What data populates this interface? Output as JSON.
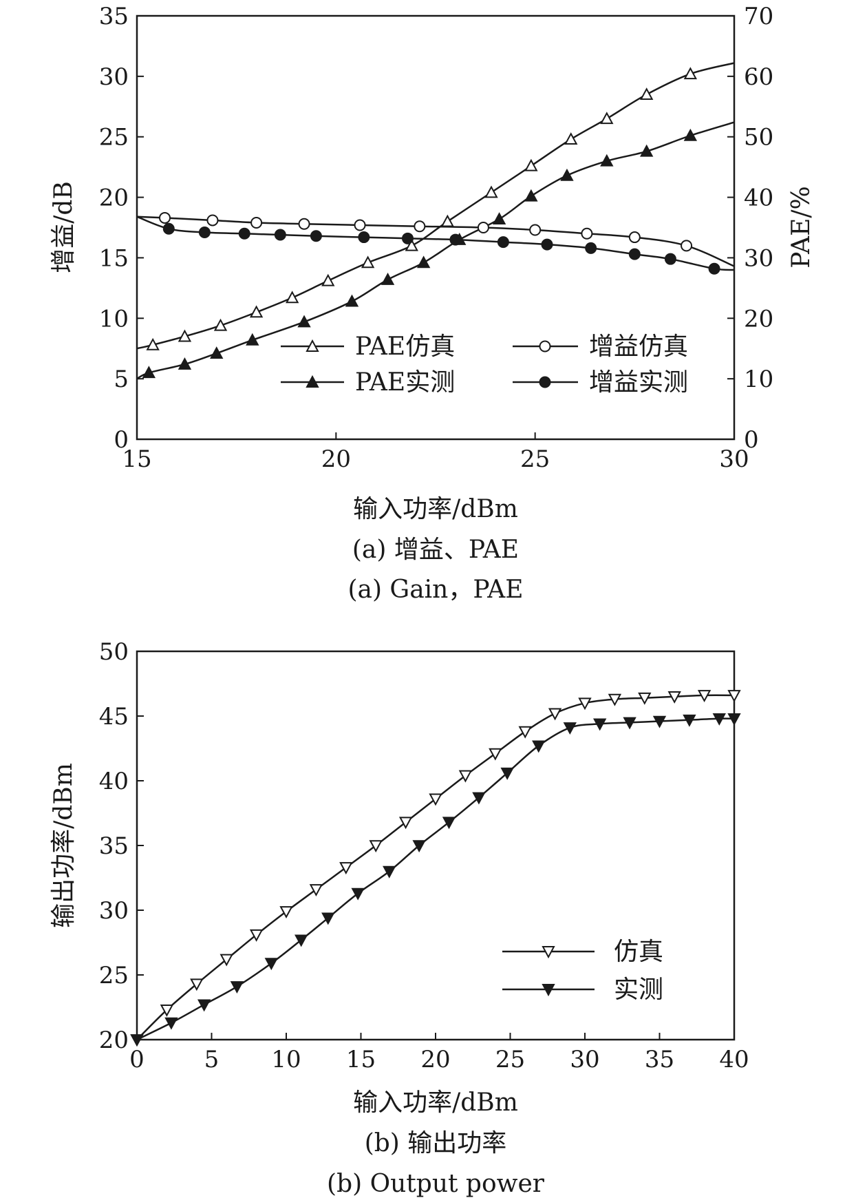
{
  "chart_data": [
    {
      "type": "line",
      "caption_cn": "(a) 增益、PAE",
      "caption_en": "(a) Gain，PAE",
      "xlabel": "输入功率/dBm",
      "ylabel_left": "增益/dB",
      "ylabel_right": "PAE/%",
      "xlim": [
        15,
        30
      ],
      "ylim_left": [
        0,
        35
      ],
      "ylim_right": [
        0,
        70
      ],
      "xticks": [
        "15",
        "20",
        "25",
        "30"
      ],
      "yticks_left": [
        "0",
        "5",
        "10",
        "15",
        "20",
        "25",
        "30",
        "35"
      ],
      "yticks_right": [
        "0",
        "10",
        "20",
        "30",
        "40",
        "50",
        "60",
        "70"
      ],
      "legend_position": "lower-center",
      "series": [
        {
          "name": "PAE仿真",
          "axis": "right",
          "marker": "triangle-up-open",
          "x": [
            15.0,
            15.4,
            16.2,
            17.1,
            18.0,
            18.9,
            19.8,
            20.8,
            21.9,
            22.8,
            23.9,
            24.9,
            25.9,
            26.8,
            27.8,
            28.9,
            30.0
          ],
          "y": [
            15.0,
            15.6,
            17.0,
            18.8,
            21.0,
            23.4,
            26.2,
            29.2,
            32.0,
            36.0,
            40.8,
            45.2,
            49.6,
            53.0,
            57.0,
            60.4,
            62.2
          ]
        },
        {
          "name": "PAE实测",
          "axis": "right",
          "marker": "triangle-up-filled",
          "x": [
            15.0,
            15.3,
            16.2,
            17.0,
            17.9,
            19.2,
            20.4,
            21.3,
            22.2,
            23.1,
            24.1,
            24.9,
            25.8,
            26.8,
            27.8,
            28.9,
            30.0
          ],
          "y": [
            10.0,
            11.0,
            12.4,
            14.2,
            16.4,
            19.4,
            22.8,
            26.4,
            29.2,
            33.0,
            36.4,
            40.2,
            43.6,
            46.0,
            47.6,
            50.2,
            52.4
          ]
        },
        {
          "name": "增益仿真",
          "axis": "left",
          "marker": "circle-open",
          "x": [
            15.0,
            15.7,
            16.9,
            18.0,
            19.2,
            20.6,
            22.1,
            23.7,
            25.0,
            26.3,
            27.5,
            28.8,
            30.0
          ],
          "y": [
            18.4,
            18.3,
            18.1,
            17.9,
            17.8,
            17.7,
            17.6,
            17.5,
            17.3,
            17.0,
            16.7,
            16.0,
            14.3
          ]
        },
        {
          "name": "增益实测",
          "axis": "left",
          "marker": "circle-filled",
          "x": [
            15.0,
            15.8,
            16.7,
            17.7,
            18.6,
            19.5,
            20.7,
            21.8,
            23.0,
            24.2,
            25.3,
            26.4,
            27.5,
            28.4,
            29.5,
            30.0
          ],
          "y": [
            18.4,
            17.4,
            17.1,
            17.0,
            16.9,
            16.8,
            16.7,
            16.6,
            16.5,
            16.3,
            16.1,
            15.8,
            15.3,
            14.9,
            14.1,
            14.0
          ]
        }
      ]
    },
    {
      "type": "line",
      "caption_cn": "(b) 输出功率",
      "caption_en": "(b) Output power",
      "xlabel": "输入功率/dBm",
      "ylabel": "输出功率/dBm",
      "xlim": [
        0,
        40
      ],
      "ylim": [
        20,
        50
      ],
      "xticks": [
        "0",
        "5",
        "10",
        "15",
        "20",
        "25",
        "30",
        "35",
        "40"
      ],
      "yticks": [
        "20",
        "25",
        "30",
        "35",
        "40",
        "45",
        "50"
      ],
      "legend_position": "lower-right",
      "series": [
        {
          "name": "仿真",
          "marker": "triangle-down-open",
          "x": [
            0,
            2,
            4,
            6,
            8,
            10,
            12,
            14,
            16,
            18,
            20,
            22,
            24,
            26,
            28,
            30,
            32,
            34,
            36,
            38,
            40
          ],
          "y": [
            20.0,
            22.3,
            24.3,
            26.2,
            28.1,
            29.9,
            31.6,
            33.3,
            35.0,
            36.8,
            38.6,
            40.4,
            42.1,
            43.8,
            45.2,
            46.0,
            46.3,
            46.4,
            46.5,
            46.6,
            46.6
          ]
        },
        {
          "name": "实测",
          "marker": "triangle-down-filled",
          "x": [
            0,
            2.3,
            4.5,
            6.7,
            9.0,
            11.0,
            12.8,
            14.8,
            16.9,
            18.9,
            20.9,
            22.9,
            24.8,
            26.9,
            29.0,
            31.0,
            33.0,
            35.0,
            37.0,
            39.0,
            40.0
          ],
          "y": [
            20.0,
            21.3,
            22.7,
            24.1,
            25.9,
            27.7,
            29.4,
            31.3,
            33.0,
            35.0,
            36.8,
            38.7,
            40.6,
            42.7,
            44.1,
            44.4,
            44.5,
            44.6,
            44.7,
            44.8,
            44.8
          ]
        }
      ]
    }
  ]
}
